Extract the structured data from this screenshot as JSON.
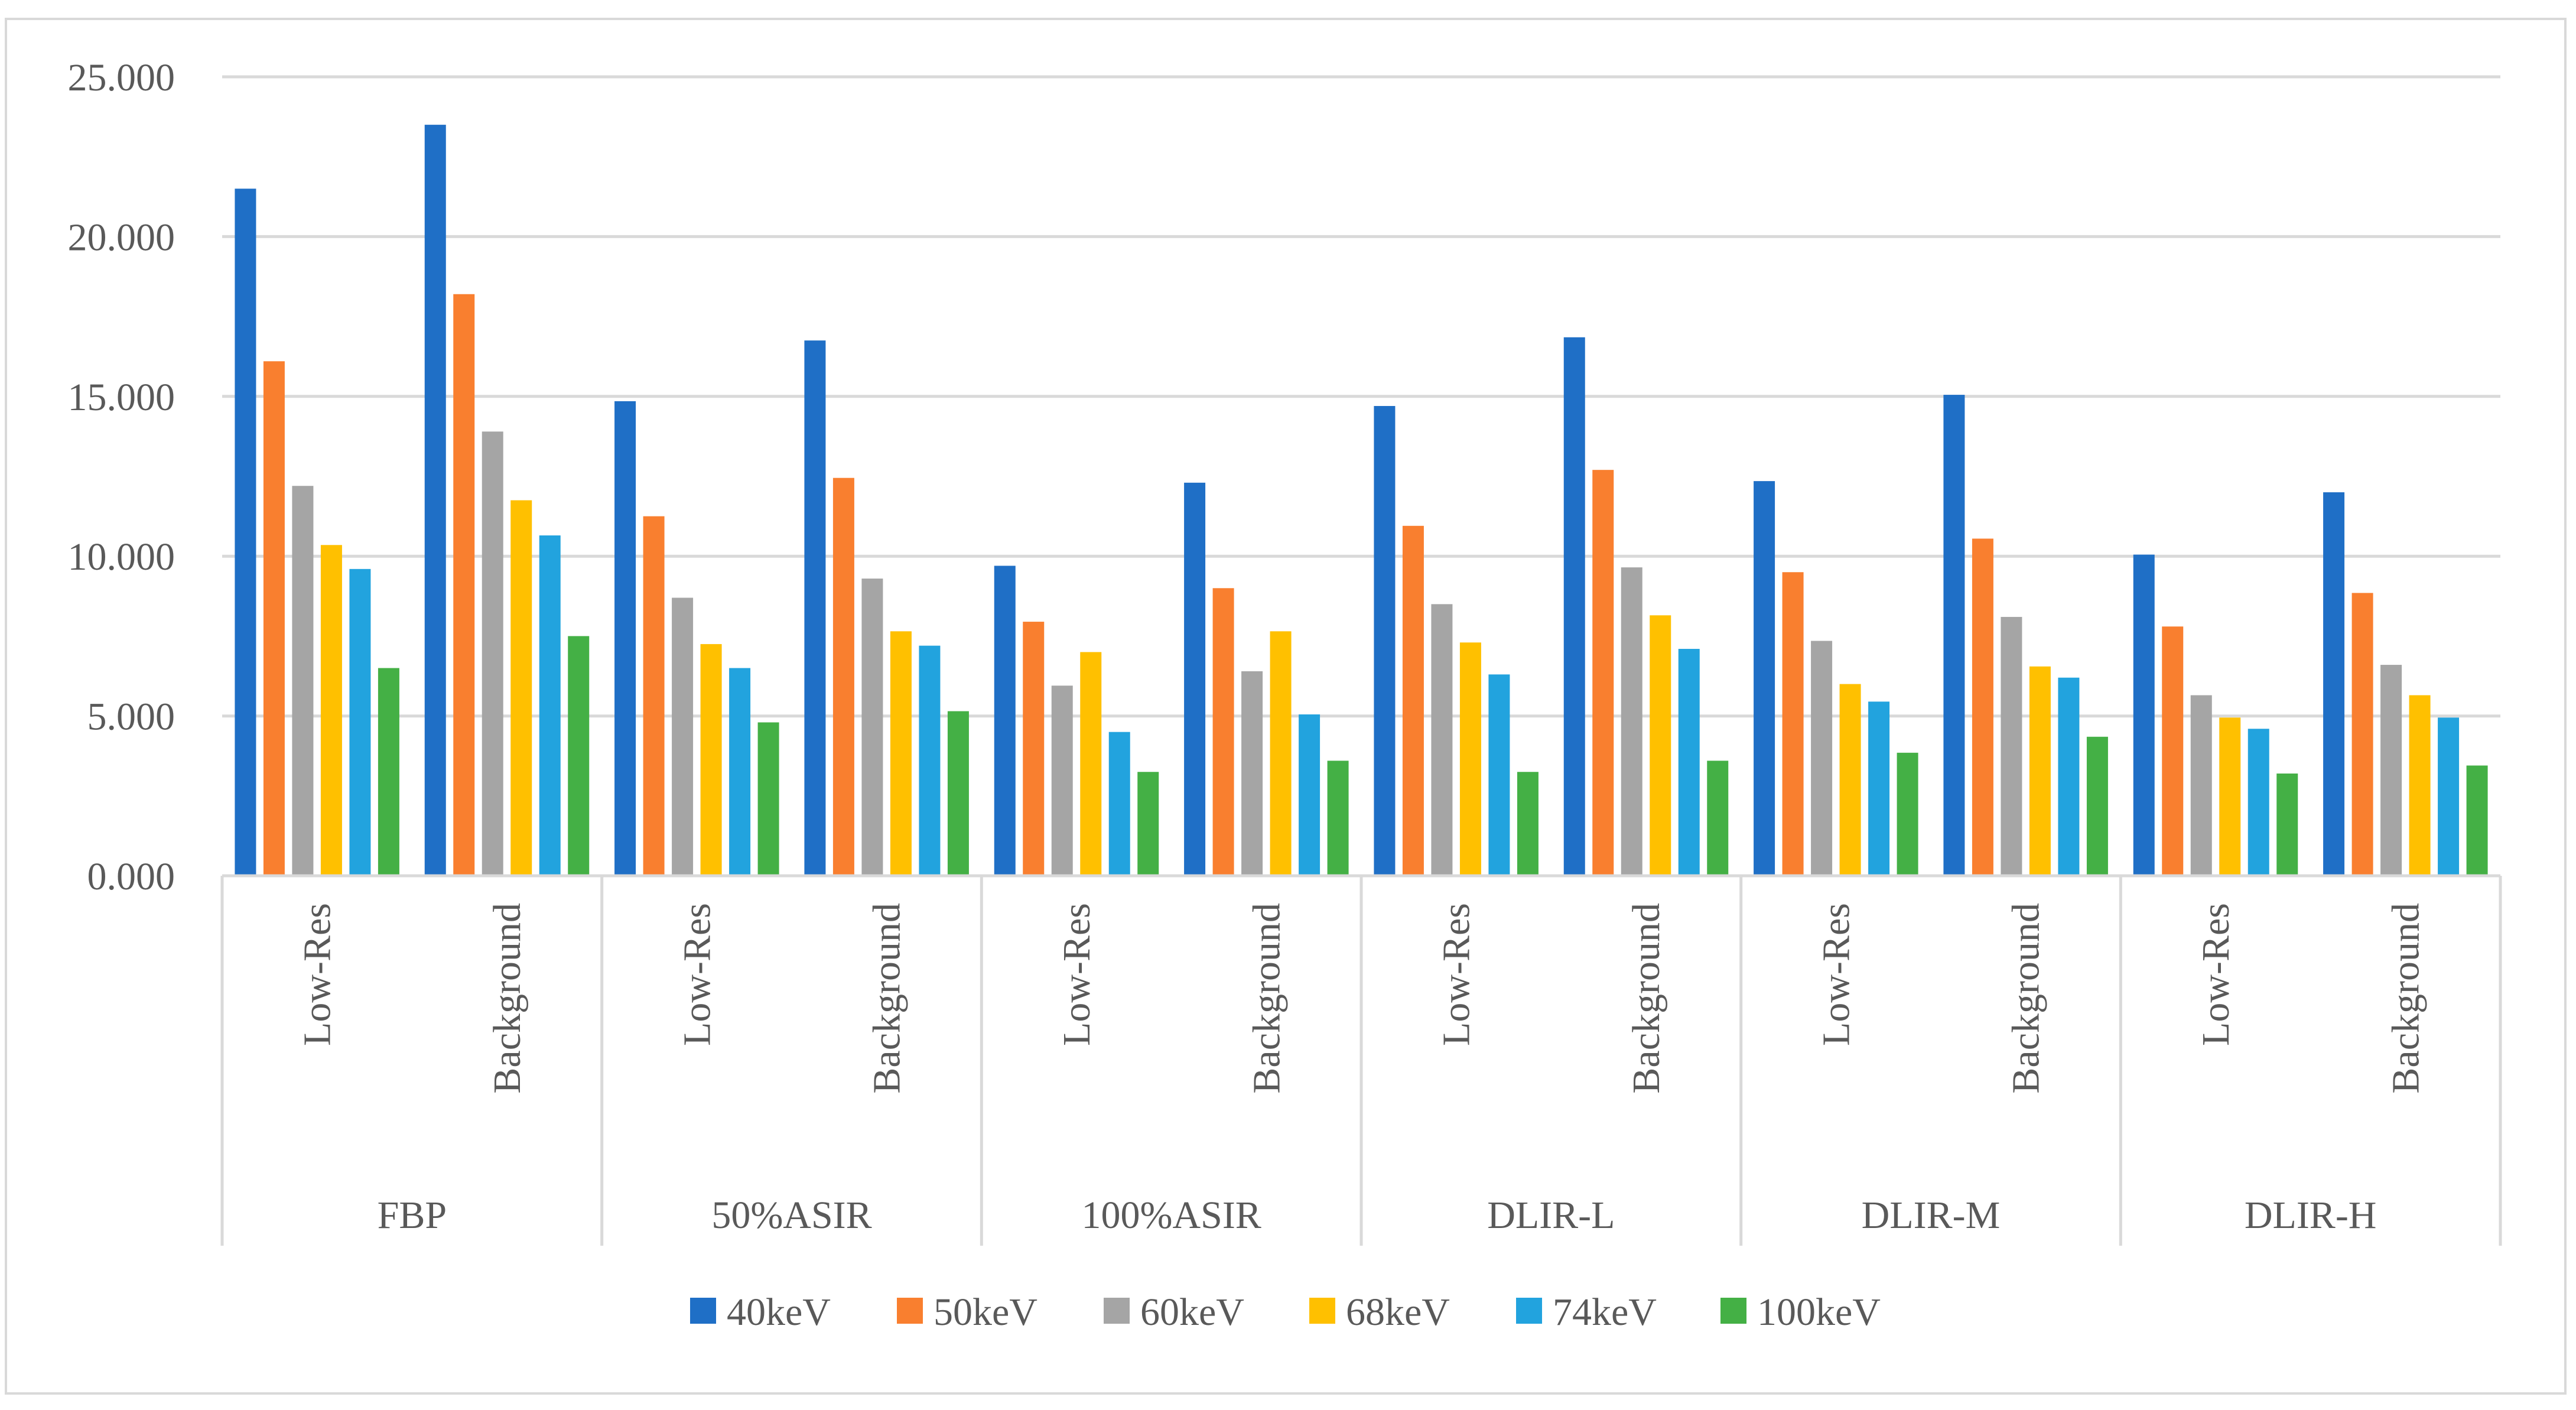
{
  "chart_data": {
    "type": "bar",
    "title": "",
    "xlabel": "",
    "ylabel": "",
    "ylim": [
      0,
      25
    ],
    "y_tick_labels": [
      "0.000",
      "5.000",
      "10.000",
      "15.000",
      "20.000",
      "25.000"
    ],
    "grid": true,
    "legend_position": "bottom",
    "groups": [
      "FBP",
      "50%ASIR",
      "100%ASIR",
      "DLIR-L",
      "DLIR-M",
      "DLIR-H"
    ],
    "subcategories": [
      "Low-Res",
      "Background"
    ],
    "categories": [
      "FBP Low-Res",
      "FBP Background",
      "50%ASIR Low-Res",
      "50%ASIR Background",
      "100%ASIR Low-Res",
      "100%ASIR Background",
      "DLIR-L Low-Res",
      "DLIR-L Background",
      "DLIR-M Low-Res",
      "DLIR-M Background",
      "DLIR-H Low-Res",
      "DLIR-H Background"
    ],
    "series": [
      {
        "name": "40keV",
        "color": "#1f6fc6",
        "values": [
          21.5,
          23.5,
          14.85,
          16.75,
          9.7,
          12.3,
          14.7,
          16.85,
          12.35,
          15.05,
          10.05,
          12.0
        ]
      },
      {
        "name": "50keV",
        "color": "#f97f2f",
        "values": [
          16.1,
          18.2,
          11.25,
          12.45,
          7.95,
          9.0,
          10.95,
          12.7,
          9.5,
          10.55,
          7.8,
          8.85
        ]
      },
      {
        "name": "60keV",
        "color": "#a5a5a5",
        "values": [
          12.2,
          13.9,
          8.7,
          9.3,
          5.95,
          6.4,
          8.5,
          9.65,
          7.35,
          8.1,
          5.65,
          6.6
        ]
      },
      {
        "name": "68keV",
        "color": "#ffc000",
        "values": [
          10.35,
          11.75,
          7.25,
          7.65,
          7.0,
          7.65,
          7.3,
          8.15,
          6.0,
          6.55,
          4.95,
          5.65
        ]
      },
      {
        "name": "74keV",
        "color": "#22a3de",
        "values": [
          9.6,
          10.65,
          6.5,
          7.2,
          4.5,
          5.05,
          6.3,
          7.1,
          5.45,
          6.2,
          4.6,
          4.95
        ]
      },
      {
        "name": "100keV",
        "color": "#44b045",
        "values": [
          6.5,
          7.5,
          4.8,
          5.15,
          3.25,
          3.6,
          3.25,
          3.6,
          3.85,
          4.35,
          3.2,
          3.45
        ]
      }
    ]
  }
}
